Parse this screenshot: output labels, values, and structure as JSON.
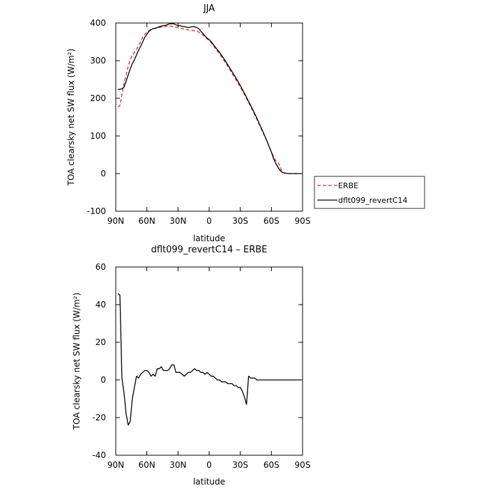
{
  "chart_data": [
    {
      "type": "line",
      "title": "JJA",
      "xlabel": "latitude",
      "ylabel": "TOA clearsky net SW flux (W/m²)",
      "xlim": [
        90,
        -90
      ],
      "ylim": [
        -100,
        400
      ],
      "grid": false,
      "legend": "right",
      "xticks": [
        {
          "value": 90,
          "label": "90N"
        },
        {
          "value": 60,
          "label": "60N"
        },
        {
          "value": 30,
          "label": "30N"
        },
        {
          "value": 0,
          "label": "0"
        },
        {
          "value": -30,
          "label": "30S"
        },
        {
          "value": -60,
          "label": "60S"
        },
        {
          "value": -90,
          "label": "90S"
        }
      ],
      "yticks": [
        -100,
        0,
        100,
        200,
        300,
        400
      ],
      "series": [
        {
          "name": "ERBE",
          "color": "#e8231f",
          "dash": true,
          "x": [
            88,
            86,
            84,
            82,
            80,
            78,
            76,
            74,
            72,
            70,
            68,
            66,
            64,
            62,
            60,
            58,
            56,
            54,
            52,
            50,
            48,
            46,
            44,
            42,
            40,
            38,
            36,
            34,
            32,
            30,
            28,
            26,
            24,
            22,
            20,
            18,
            16,
            14,
            12,
            10,
            8,
            6,
            4,
            2,
            0,
            -2,
            -4,
            -6,
            -8,
            -10,
            -15,
            -20,
            -25,
            -30,
            -35,
            -40,
            -45,
            -50,
            -55,
            -60,
            -62,
            -64,
            -66,
            -68,
            -70,
            -72,
            -74,
            -76,
            -78,
            -80,
            -82,
            -84,
            -86,
            -88
          ],
          "y": [
            178,
            180,
            210,
            240,
            262,
            285,
            302,
            315,
            322,
            330,
            340,
            350,
            362,
            370,
            375,
            380,
            383,
            385,
            386,
            387,
            388,
            389,
            390,
            391,
            392,
            392,
            391,
            390,
            389,
            387,
            386,
            385,
            384,
            383,
            382,
            380,
            380,
            380,
            378,
            376,
            372,
            368,
            363,
            358,
            354,
            347,
            340,
            332,
            325,
            318,
            298,
            276,
            253,
            230,
            205,
            178,
            150,
            120,
            90,
            58,
            45,
            35,
            30,
            22,
            6,
            2,
            1,
            0,
            0,
            0,
            0,
            0,
            0,
            0
          ]
        },
        {
          "name": "dflt099_revertC14",
          "color": "#000000",
          "dash": false,
          "x": [
            88,
            86,
            84,
            82,
            80,
            78,
            76,
            74,
            72,
            70,
            68,
            66,
            64,
            62,
            60,
            58,
            56,
            54,
            52,
            50,
            48,
            46,
            44,
            42,
            40,
            38,
            36,
            34,
            32,
            30,
            28,
            26,
            24,
            22,
            20,
            18,
            16,
            14,
            12,
            10,
            8,
            6,
            4,
            2,
            0,
            -2,
            -4,
            -6,
            -8,
            -10,
            -15,
            -20,
            -25,
            -30,
            -35,
            -40,
            -45,
            -50,
            -55,
            -60,
            -62,
            -64,
            -66,
            -68,
            -70,
            -72,
            -74,
            -76,
            -78,
            -80,
            -82,
            -84,
            -86,
            -88
          ],
          "y": [
            223,
            224,
            225,
            230,
            245,
            262,
            278,
            292,
            302,
            315,
            328,
            338,
            350,
            362,
            370,
            378,
            382,
            385,
            386,
            388,
            390,
            392,
            393,
            394,
            396,
            398,
            398,
            398,
            395,
            393,
            393,
            391,
            390,
            389,
            388,
            389,
            390,
            390,
            388,
            385,
            378,
            372,
            366,
            360,
            356,
            350,
            343,
            336,
            329,
            322,
            302,
            280,
            258,
            234,
            208,
            181,
            153,
            123,
            91,
            57,
            40,
            28,
            18,
            10,
            4,
            2,
            1,
            0,
            0,
            0,
            0,
            0,
            0,
            0
          ]
        }
      ]
    },
    {
      "type": "line",
      "title": "dflt099_revertC14 – ERBE",
      "xlabel": "latitude",
      "ylabel": "TOA clearsky net SW flux (W/m²)",
      "xlim": [
        90,
        -90
      ],
      "ylim": [
        -40,
        60
      ],
      "grid": false,
      "xticks": [
        {
          "value": 90,
          "label": "90N"
        },
        {
          "value": 60,
          "label": "60N"
        },
        {
          "value": 30,
          "label": "30N"
        },
        {
          "value": 0,
          "label": "0"
        },
        {
          "value": -30,
          "label": "30S"
        },
        {
          "value": -60,
          "label": "60S"
        },
        {
          "value": -90,
          "label": "90S"
        }
      ],
      "yticks": [
        -40,
        -20,
        0,
        20,
        40,
        60
      ],
      "series": [
        {
          "color": "#000000",
          "x": [
            88,
            86,
            84,
            82,
            80,
            78,
            76,
            74,
            72,
            70,
            68,
            66,
            64,
            62,
            60,
            58,
            56,
            54,
            52,
            50,
            48,
            46,
            44,
            42,
            40,
            38,
            36,
            34,
            32,
            30,
            28,
            26,
            24,
            22,
            20,
            18,
            16,
            14,
            12,
            10,
            8,
            6,
            4,
            2,
            0,
            -2,
            -4,
            -6,
            -8,
            -10,
            -12,
            -14,
            -16,
            -18,
            -20,
            -22,
            -24,
            -26,
            -28,
            -30,
            -32,
            -34,
            -36,
            -38,
            -40,
            -42,
            -44,
            -46,
            -48,
            -50,
            -52,
            -54,
            -56,
            -58,
            -60,
            -62,
            -64,
            -66,
            -68,
            -70,
            -72,
            -74,
            -76,
            -78,
            -80,
            -82,
            -84,
            -86,
            -88
          ],
          "y": [
            46,
            45,
            1,
            -7,
            -18,
            -24,
            -22,
            -10,
            -4,
            2,
            1,
            3,
            4,
            5,
            5,
            4,
            2,
            3,
            2,
            6,
            6,
            7,
            5,
            5,
            5,
            6,
            8,
            8,
            4,
            4,
            4,
            3,
            2,
            3,
            4,
            4,
            5,
            6,
            5,
            5,
            4,
            4,
            3,
            4,
            3,
            2,
            2,
            1,
            0,
            0,
            -1,
            -1,
            -1,
            -2,
            -2,
            -2,
            -3,
            -3,
            -4,
            -4,
            -6,
            -9,
            -13,
            2,
            1,
            1,
            1,
            0,
            0,
            0,
            0,
            0,
            0,
            0,
            0,
            0,
            0,
            0,
            0,
            0,
            0,
            0,
            0,
            0,
            0,
            0,
            0,
            0,
            0
          ]
        }
      ]
    }
  ]
}
